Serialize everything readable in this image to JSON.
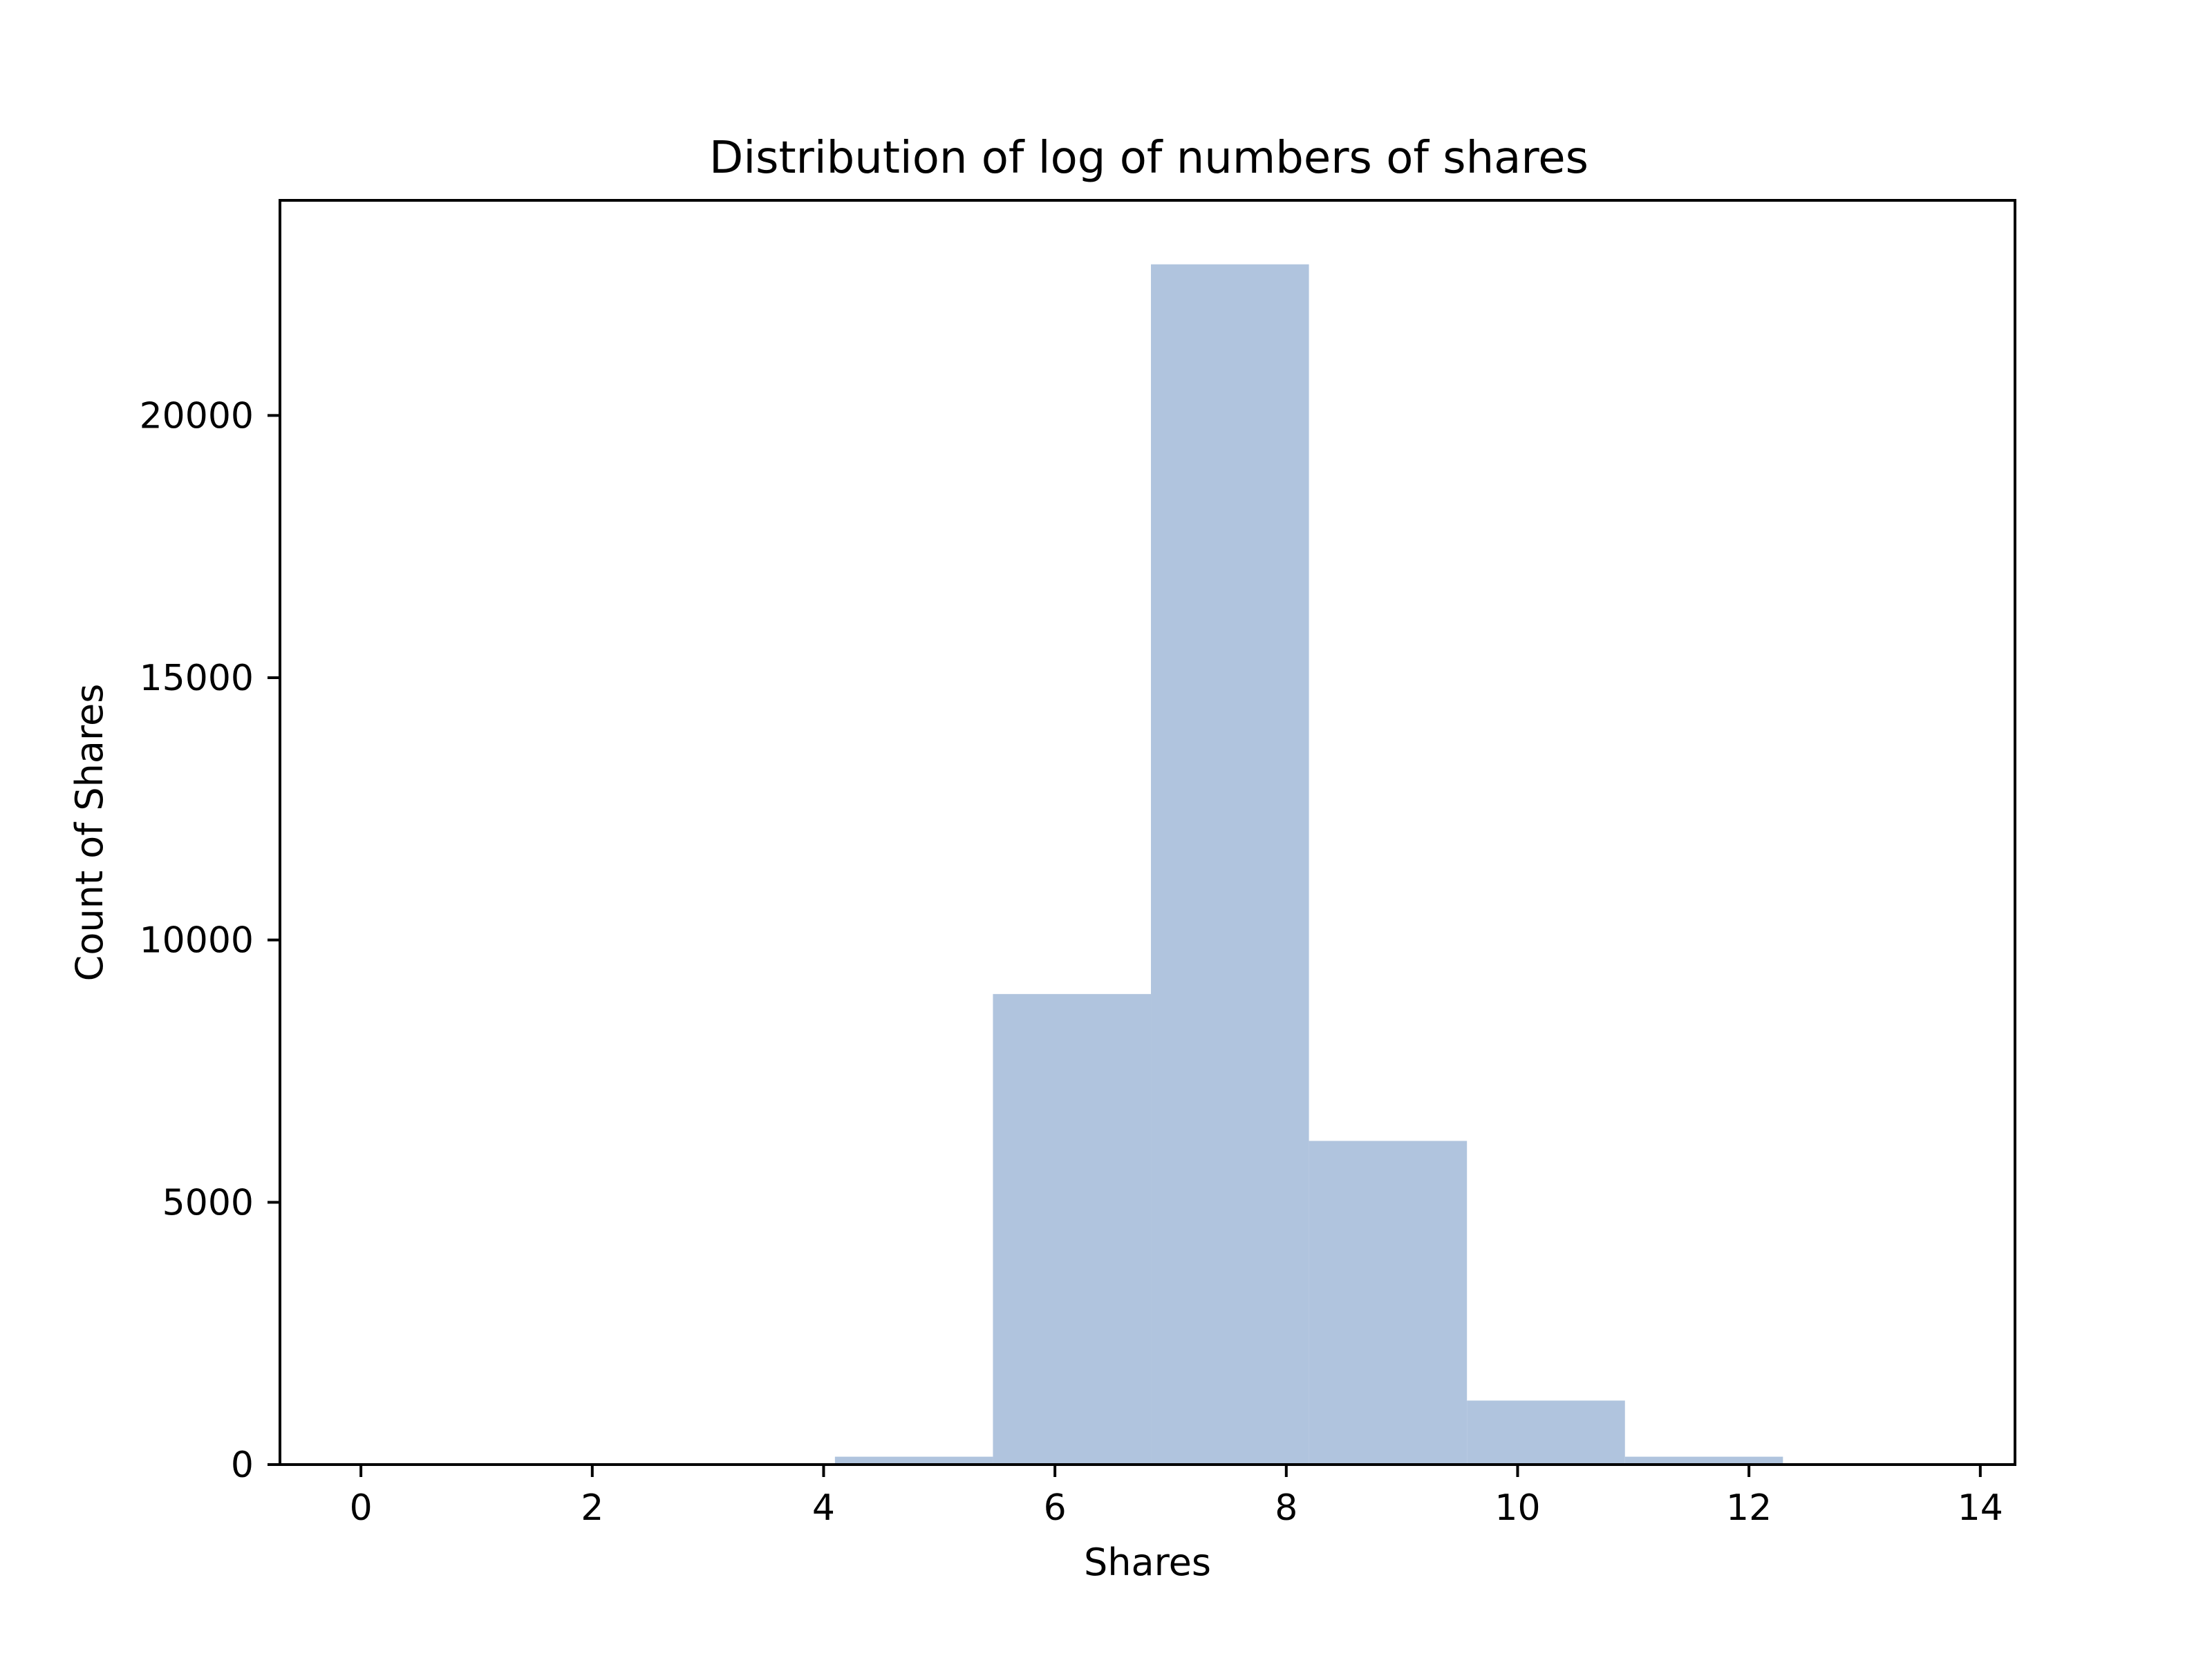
{
  "chart_data": {
    "type": "bar",
    "title": "Distribution of log of numbers of shares",
    "xlabel": "Shares",
    "ylabel": "Count of Shares",
    "xlim": [
      -0.7,
      14.3
    ],
    "ylim": [
      0,
      24100
    ],
    "bar_color": "#b0c4de",
    "bins": [
      {
        "start": 0.0,
        "end": 1.366,
        "count": 1
      },
      {
        "start": 1.366,
        "end": 2.732,
        "count": 0
      },
      {
        "start": 2.732,
        "end": 4.098,
        "count": 2
      },
      {
        "start": 4.098,
        "end": 5.464,
        "count": 150
      },
      {
        "start": 5.464,
        "end": 6.83,
        "count": 8970
      },
      {
        "start": 6.83,
        "end": 8.196,
        "count": 22880
      },
      {
        "start": 8.196,
        "end": 9.562,
        "count": 6170
      },
      {
        "start": 9.562,
        "end": 10.928,
        "count": 1220
      },
      {
        "start": 10.928,
        "end": 12.294,
        "count": 150
      },
      {
        "start": 12.294,
        "end": 13.66,
        "count": 10
      }
    ],
    "x_ticks": [
      0,
      2,
      4,
      6,
      8,
      10,
      12,
      14
    ],
    "x_tick_labels": [
      "0",
      "2",
      "4",
      "6",
      "8",
      "10",
      "12",
      "14"
    ],
    "y_ticks": [
      0,
      5000,
      10000,
      15000,
      20000
    ],
    "y_tick_labels": [
      "0",
      "5000",
      "10000",
      "15000",
      "20000"
    ],
    "grid": false,
    "legend": "none"
  }
}
